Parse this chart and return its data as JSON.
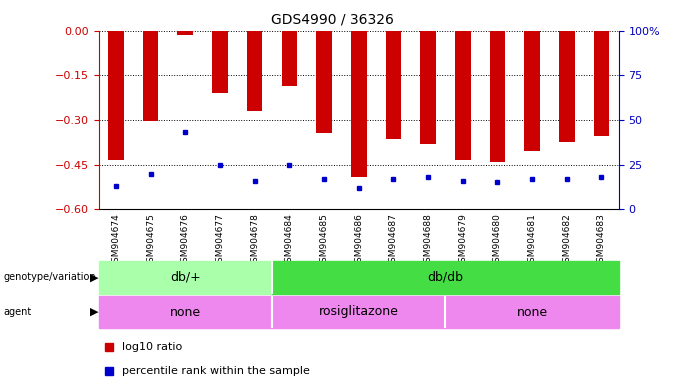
{
  "title": "GDS4990 / 36326",
  "samples": [
    "GSM904674",
    "GSM904675",
    "GSM904676",
    "GSM904677",
    "GSM904678",
    "GSM904684",
    "GSM904685",
    "GSM904686",
    "GSM904687",
    "GSM904688",
    "GSM904679",
    "GSM904680",
    "GSM904681",
    "GSM904682",
    "GSM904683"
  ],
  "log10_ratio": [
    -0.435,
    -0.305,
    -0.015,
    -0.21,
    -0.27,
    -0.185,
    -0.345,
    -0.49,
    -0.365,
    -0.38,
    -0.435,
    -0.44,
    -0.405,
    -0.375,
    -0.355
  ],
  "percentile_rank": [
    13,
    20,
    43,
    25,
    16,
    25,
    17,
    12,
    17,
    18,
    16,
    15,
    17,
    17,
    18
  ],
  "bar_color": "#cc0000",
  "dot_color": "#0000cc",
  "ylim": [
    -0.6,
    0.0
  ],
  "yticks": [
    0.0,
    -0.15,
    -0.3,
    -0.45,
    -0.6
  ],
  "right_yticks": [
    0,
    25,
    50,
    75,
    100
  ],
  "right_ytick_labels": [
    "0",
    "25",
    "50",
    "75",
    "100%"
  ],
  "genotype_groups": [
    {
      "label": "db/+",
      "start": 0,
      "end": 5,
      "color": "#aaffaa"
    },
    {
      "label": "db/db",
      "start": 5,
      "end": 15,
      "color": "#44dd44"
    }
  ],
  "agent_groups": [
    {
      "label": "none",
      "start": 0,
      "end": 5,
      "color": "#ee88ee"
    },
    {
      "label": "rosiglitazone",
      "start": 5,
      "end": 10,
      "color": "#ee88ee"
    },
    {
      "label": "none",
      "start": 10,
      "end": 15,
      "color": "#ee88ee"
    }
  ],
  "legend_items": [
    {
      "label": "log10 ratio",
      "color": "#cc0000"
    },
    {
      "label": "percentile rank within the sample",
      "color": "#0000cc"
    }
  ],
  "tick_label_color": "#444444",
  "left_axis_color": "#cc0000",
  "right_axis_color": "#0000bb"
}
